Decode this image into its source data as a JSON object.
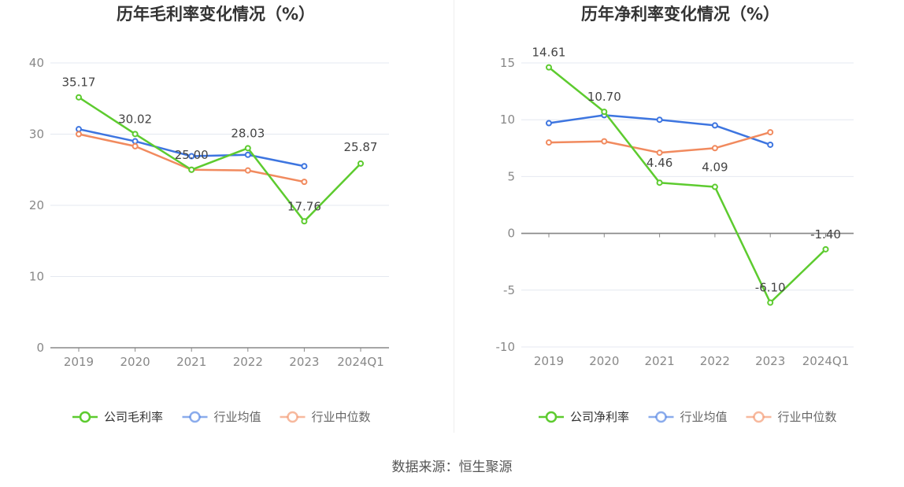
{
  "charts": [
    {
      "title": "历年毛利率变化情况（%）",
      "type": "line",
      "categories": [
        "2019",
        "2020",
        "2021",
        "2022",
        "2023",
        "2024Q1"
      ],
      "ylim": [
        0,
        40
      ],
      "yticks": [
        0,
        10,
        20,
        30,
        40
      ],
      "series": [
        {
          "name": "公司毛利率",
          "color": "#5dcb2f",
          "values": [
            35.17,
            30.02,
            25.0,
            28.03,
            17.76,
            25.87
          ],
          "labels": [
            "35.17",
            "30.02",
            "25.00",
            "28.03",
            "17.76",
            "25.87"
          ]
        },
        {
          "name": "行业均值",
          "color": "#3d75e0",
          "values": [
            30.7,
            29.0,
            26.9,
            27.1,
            25.5,
            null
          ]
        },
        {
          "name": "行业中位数",
          "color": "#f18a5e",
          "values": [
            30.0,
            28.3,
            25.0,
            24.9,
            23.3,
            null
          ]
        }
      ]
    },
    {
      "title": "历年净利率变化情况（%）",
      "type": "line",
      "categories": [
        "2019",
        "2020",
        "2021",
        "2022",
        "2023",
        "2024Q1"
      ],
      "ylim": [
        -10,
        15
      ],
      "yticks": [
        -10,
        -5,
        0,
        5,
        10,
        15
      ],
      "series": [
        {
          "name": "公司净利率",
          "color": "#5dcb2f",
          "values": [
            14.61,
            10.7,
            4.46,
            4.09,
            -6.1,
            -1.4
          ],
          "labels": [
            "14.61",
            "10.70",
            "4.46",
            "4.09",
            "-6.10",
            "-1.40"
          ]
        },
        {
          "name": "行业均值",
          "color": "#3d75e0",
          "values": [
            9.7,
            10.4,
            10.0,
            9.5,
            7.8,
            null
          ]
        },
        {
          "name": "行业中位数",
          "color": "#f18a5e",
          "values": [
            8.0,
            8.1,
            7.1,
            7.5,
            8.9,
            null
          ]
        }
      ]
    }
  ],
  "footer": {
    "source": "数据来源：恒生聚源"
  }
}
